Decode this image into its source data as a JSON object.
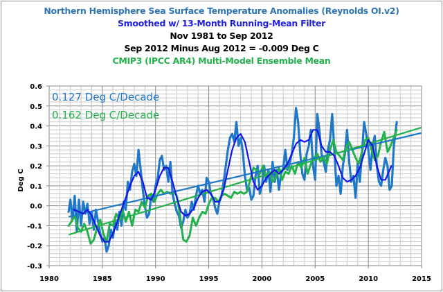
{
  "chart_data": {
    "type": "line",
    "title_lines": [
      {
        "text": "Northern Hemisphere Sea Surface Temperature Anomalies (Reynolds OI.v2)",
        "color": "#2E75B6"
      },
      {
        "text": "Smoothed w/ 13-Month Running-Mean Filter",
        "color": "#1F1FE0"
      },
      {
        "text": "Nov 1981 to Sep 2012",
        "color": "#000000"
      },
      {
        "text": "Sep 2012 Minus Aug 2012 = -0.009 Deg C",
        "color": "#000000"
      },
      {
        "text": "CMIP3 (IPCC AR4) Multi-Model Ensemble Mean",
        "color": "#22B14C"
      }
    ],
    "xlabel": "",
    "ylabel": "Deg C",
    "xlim": [
      1980,
      2015
    ],
    "ylim": [
      -0.3,
      0.6
    ],
    "x_ticks": [
      "1980",
      "1985",
      "1990",
      "1995",
      "2000",
      "2005",
      "2010",
      "2015"
    ],
    "y_ticks": [
      "0.6",
      "0.5",
      "0.4",
      "0.3",
      "0.2",
      "0.1",
      "0.0",
      "-0.1",
      "-0.2",
      "-0.3"
    ],
    "grid": true,
    "annotations": [
      {
        "text": "0.127 Deg C/Decade",
        "color": "#1F78C8"
      },
      {
        "text": "0.162 Deg C/Decade",
        "color": "#22B14C"
      }
    ],
    "series": [
      {
        "name": "NH SST Anomalies (Reynolds OI.v2)",
        "color": "#1F78C8",
        "x": [
          1981.83,
          1982.0,
          1982.2,
          1982.4,
          1982.6,
          1982.8,
          1983.0,
          1983.2,
          1983.4,
          1983.6,
          1983.8,
          1984.0,
          1984.2,
          1984.4,
          1984.6,
          1984.8,
          1985.0,
          1985.2,
          1985.4,
          1985.6,
          1985.8,
          1986.0,
          1986.2,
          1986.4,
          1986.6,
          1986.8,
          1987.0,
          1987.2,
          1987.4,
          1987.6,
          1987.8,
          1988.0,
          1988.2,
          1988.4,
          1988.6,
          1988.8,
          1989.0,
          1989.2,
          1989.4,
          1989.6,
          1989.8,
          1990.0,
          1990.2,
          1990.4,
          1990.6,
          1990.8,
          1991.0,
          1991.2,
          1991.4,
          1991.6,
          1991.8,
          1992.0,
          1992.2,
          1992.4,
          1992.6,
          1992.8,
          1993.0,
          1993.2,
          1993.4,
          1993.6,
          1993.8,
          1994.0,
          1994.2,
          1994.4,
          1994.6,
          1994.8,
          1995.0,
          1995.2,
          1995.4,
          1995.6,
          1995.8,
          1996.0,
          1996.2,
          1996.4,
          1996.6,
          1996.8,
          1997.0,
          1997.2,
          1997.4,
          1997.6,
          1997.8,
          1998.0,
          1998.2,
          1998.4,
          1998.6,
          1998.8,
          1999.0,
          1999.2,
          1999.4,
          1999.6,
          1999.8,
          2000.0,
          2000.2,
          2000.4,
          2000.6,
          2000.8,
          2001.0,
          2001.2,
          2001.4,
          2001.6,
          2001.8,
          2002.0,
          2002.2,
          2002.4,
          2002.6,
          2002.8,
          2003.0,
          2003.2,
          2003.4,
          2003.6,
          2003.8,
          2004.0,
          2004.2,
          2004.4,
          2004.6,
          2004.8,
          2005.0,
          2005.2,
          2005.4,
          2005.6,
          2005.8,
          2006.0,
          2006.2,
          2006.4,
          2006.6,
          2006.8,
          2007.0,
          2007.2,
          2007.4,
          2007.6,
          2007.8,
          2008.0,
          2008.2,
          2008.4,
          2008.6,
          2008.8,
          2009.0,
          2009.2,
          2009.4,
          2009.6,
          2009.8,
          2010.0,
          2010.2,
          2010.4,
          2010.6,
          2010.8,
          2011.0,
          2011.2,
          2011.4,
          2011.6,
          2011.8,
          2012.0,
          2012.2,
          2012.4,
          2012.67
        ],
        "y": [
          -0.03,
          0.03,
          -0.07,
          0.05,
          -0.13,
          0.03,
          -0.1,
          0.02,
          -0.04,
          0.01,
          -0.09,
          -0.03,
          -0.12,
          -0.02,
          -0.08,
          -0.14,
          -0.18,
          -0.16,
          -0.23,
          -0.2,
          -0.12,
          -0.16,
          -0.08,
          -0.12,
          -0.03,
          -0.1,
          0.02,
          -0.02,
          0.12,
          0.08,
          0.17,
          0.21,
          0.15,
          0.28,
          0.18,
          0.08,
          0.0,
          -0.06,
          -0.04,
          0.06,
          0.02,
          0.1,
          0.14,
          0.23,
          0.25,
          0.18,
          0.2,
          0.12,
          0.22,
          0.06,
          0.01,
          -0.03,
          -0.05,
          -0.11,
          -0.08,
          -0.02,
          -0.06,
          -0.04,
          0.02,
          -0.02,
          0.05,
          0.1,
          0.06,
          0.08,
          0.02,
          0.14,
          0.12,
          0.06,
          0.04,
          -0.01,
          -0.04,
          0.02,
          0.05,
          0.12,
          0.2,
          0.28,
          0.34,
          0.36,
          0.32,
          0.42,
          0.3,
          0.34,
          0.27,
          0.15,
          0.08,
          0.09,
          0.03,
          0.05,
          0.15,
          0.2,
          0.06,
          0.1,
          0.2,
          0.12,
          0.18,
          0.07,
          0.22,
          0.12,
          0.18,
          0.08,
          0.16,
          0.19,
          0.28,
          0.18,
          0.21,
          0.26,
          0.34,
          0.49,
          0.42,
          0.26,
          0.16,
          0.13,
          0.26,
          0.3,
          0.38,
          0.2,
          0.13,
          0.46,
          0.38,
          0.26,
          0.22,
          0.17,
          0.28,
          0.33,
          0.46,
          0.28,
          0.1,
          0.15,
          0.06,
          0.2,
          0.26,
          0.38,
          0.22,
          0.12,
          0.15,
          0.04,
          0.22,
          0.12,
          0.26,
          0.42,
          0.36,
          0.28,
          0.18,
          0.3,
          0.35,
          0.2,
          0.12,
          0.1,
          0.18,
          0.24,
          0.2,
          0.08,
          0.1,
          0.3,
          0.42
        ]
      },
      {
        "name": "NH SST 13-Month Running Mean",
        "color": "#1414E6",
        "x": [
          1982.33,
          1982.8,
          1983.2,
          1983.6,
          1984.0,
          1984.4,
          1984.8,
          1985.2,
          1985.6,
          1986.0,
          1986.4,
          1986.8,
          1987.2,
          1987.6,
          1988.0,
          1988.4,
          1988.8,
          1989.2,
          1989.6,
          1990.0,
          1990.4,
          1990.8,
          1991.2,
          1991.6,
          1992.0,
          1992.4,
          1992.8,
          1993.2,
          1993.6,
          1994.0,
          1994.4,
          1994.8,
          1995.2,
          1995.6,
          1996.0,
          1996.4,
          1996.8,
          1997.2,
          1997.6,
          1998.0,
          1998.4,
          1998.8,
          1999.2,
          1999.6,
          2000.0,
          2000.4,
          2000.8,
          2001.2,
          2001.6,
          2002.0,
          2002.4,
          2002.8,
          2003.2,
          2003.6,
          2004.0,
          2004.4,
          2004.8,
          2005.2,
          2005.6,
          2006.0,
          2006.4,
          2006.8,
          2007.2,
          2007.6,
          2008.0,
          2008.4,
          2008.8,
          2009.2,
          2009.6,
          2010.0,
          2010.4,
          2010.8,
          2011.2,
          2011.6,
          2012.17
        ],
        "y": [
          -0.02,
          -0.03,
          -0.04,
          -0.02,
          -0.05,
          -0.1,
          -0.15,
          -0.18,
          -0.18,
          -0.14,
          -0.08,
          -0.02,
          0.04,
          0.1,
          0.15,
          0.17,
          0.12,
          0.04,
          0.03,
          0.08,
          0.15,
          0.19,
          0.19,
          0.12,
          0.04,
          -0.03,
          -0.05,
          -0.04,
          -0.01,
          0.04,
          0.07,
          0.08,
          0.06,
          0.02,
          0.02,
          0.08,
          0.18,
          0.28,
          0.34,
          0.36,
          0.32,
          0.22,
          0.12,
          0.08,
          0.1,
          0.14,
          0.16,
          0.18,
          0.16,
          0.18,
          0.21,
          0.26,
          0.31,
          0.33,
          0.32,
          0.33,
          0.38,
          0.38,
          0.3,
          0.27,
          0.27,
          0.25,
          0.2,
          0.14,
          0.12,
          0.13,
          0.15,
          0.19,
          0.26,
          0.33,
          0.3,
          0.2,
          0.13,
          0.13,
          0.2
        ]
      },
      {
        "name": "CMIP3 Multi-Model Ensemble Mean",
        "color": "#22B14C",
        "x": [
          1981.83,
          1982.1,
          1982.4,
          1982.7,
          1983.0,
          1983.3,
          1983.6,
          1983.9,
          1984.2,
          1984.5,
          1984.8,
          1985.1,
          1985.4,
          1985.7,
          1986.0,
          1986.3,
          1986.6,
          1986.9,
          1987.2,
          1987.5,
          1987.8,
          1988.1,
          1988.4,
          1988.7,
          1989.0,
          1989.3,
          1989.6,
          1989.9,
          1990.2,
          1990.5,
          1990.8,
          1991.1,
          1991.4,
          1991.7,
          1992.0,
          1992.3,
          1992.6,
          1992.9,
          1993.2,
          1993.5,
          1993.8,
          1994.1,
          1994.4,
          1994.7,
          1995.0,
          1995.3,
          1995.6,
          1995.9,
          1996.2,
          1996.5,
          1996.8,
          1997.1,
          1997.4,
          1997.7,
          1998.0,
          1998.3,
          1998.6,
          1998.9,
          1999.2,
          1999.5,
          1999.8,
          2000.1,
          2000.4,
          2000.7,
          2001.0,
          2001.3,
          2001.6,
          2001.9,
          2002.2,
          2002.5,
          2002.8,
          2003.1,
          2003.4,
          2003.7,
          2004.0,
          2004.3,
          2004.6,
          2004.9,
          2005.2,
          2005.5,
          2005.8,
          2006.1,
          2006.4,
          2006.7,
          2007.0,
          2007.3,
          2007.6,
          2007.9,
          2008.2,
          2008.5,
          2008.8,
          2009.1,
          2009.4,
          2009.7,
          2010.0,
          2010.3,
          2010.6,
          2010.9,
          2011.2,
          2011.5,
          2011.8,
          2012.1,
          2012.67
        ],
        "y": [
          -0.1,
          -0.08,
          -0.05,
          -0.11,
          -0.13,
          -0.09,
          -0.13,
          -0.19,
          -0.17,
          -0.11,
          -0.07,
          -0.14,
          -0.18,
          -0.09,
          -0.1,
          -0.04,
          -0.07,
          -0.02,
          -0.08,
          -0.03,
          -0.1,
          -0.02,
          -0.03,
          0.02,
          -0.01,
          0.05,
          0.06,
          0.02,
          0.06,
          0.08,
          0.06,
          0.07,
          0.06,
          0.07,
          0.05,
          -0.05,
          -0.17,
          -0.18,
          -0.15,
          -0.06,
          -0.1,
          -0.06,
          -0.03,
          -0.04,
          0.01,
          0.04,
          0.04,
          0.02,
          0.05,
          0.06,
          0.05,
          0.04,
          0.07,
          0.06,
          0.07,
          0.06,
          0.07,
          0.13,
          0.19,
          0.18,
          0.16,
          0.2,
          0.14,
          0.17,
          0.12,
          0.14,
          0.19,
          0.13,
          0.17,
          0.16,
          0.2,
          0.16,
          0.22,
          0.19,
          0.24,
          0.16,
          0.21,
          0.24,
          0.26,
          0.22,
          0.24,
          0.21,
          0.28,
          0.33,
          0.27,
          0.25,
          0.23,
          0.29,
          0.32,
          0.28,
          0.24,
          0.21,
          0.27,
          0.33,
          0.34,
          0.28,
          0.23,
          0.25,
          0.32,
          0.37,
          0.27,
          0.3,
          0.38
        ]
      }
    ],
    "trendlines": [
      {
        "name": "NH SST linear trend",
        "color": "#1F78C8",
        "x": [
          1981.83,
          2015
        ],
        "y": [
          -0.055,
          0.365
        ]
      },
      {
        "name": "CMIP3 linear trend",
        "color": "#22B14C",
        "x": [
          1981.83,
          2015
        ],
        "y": [
          -0.145,
          0.392
        ]
      }
    ],
    "legend": "none"
  }
}
